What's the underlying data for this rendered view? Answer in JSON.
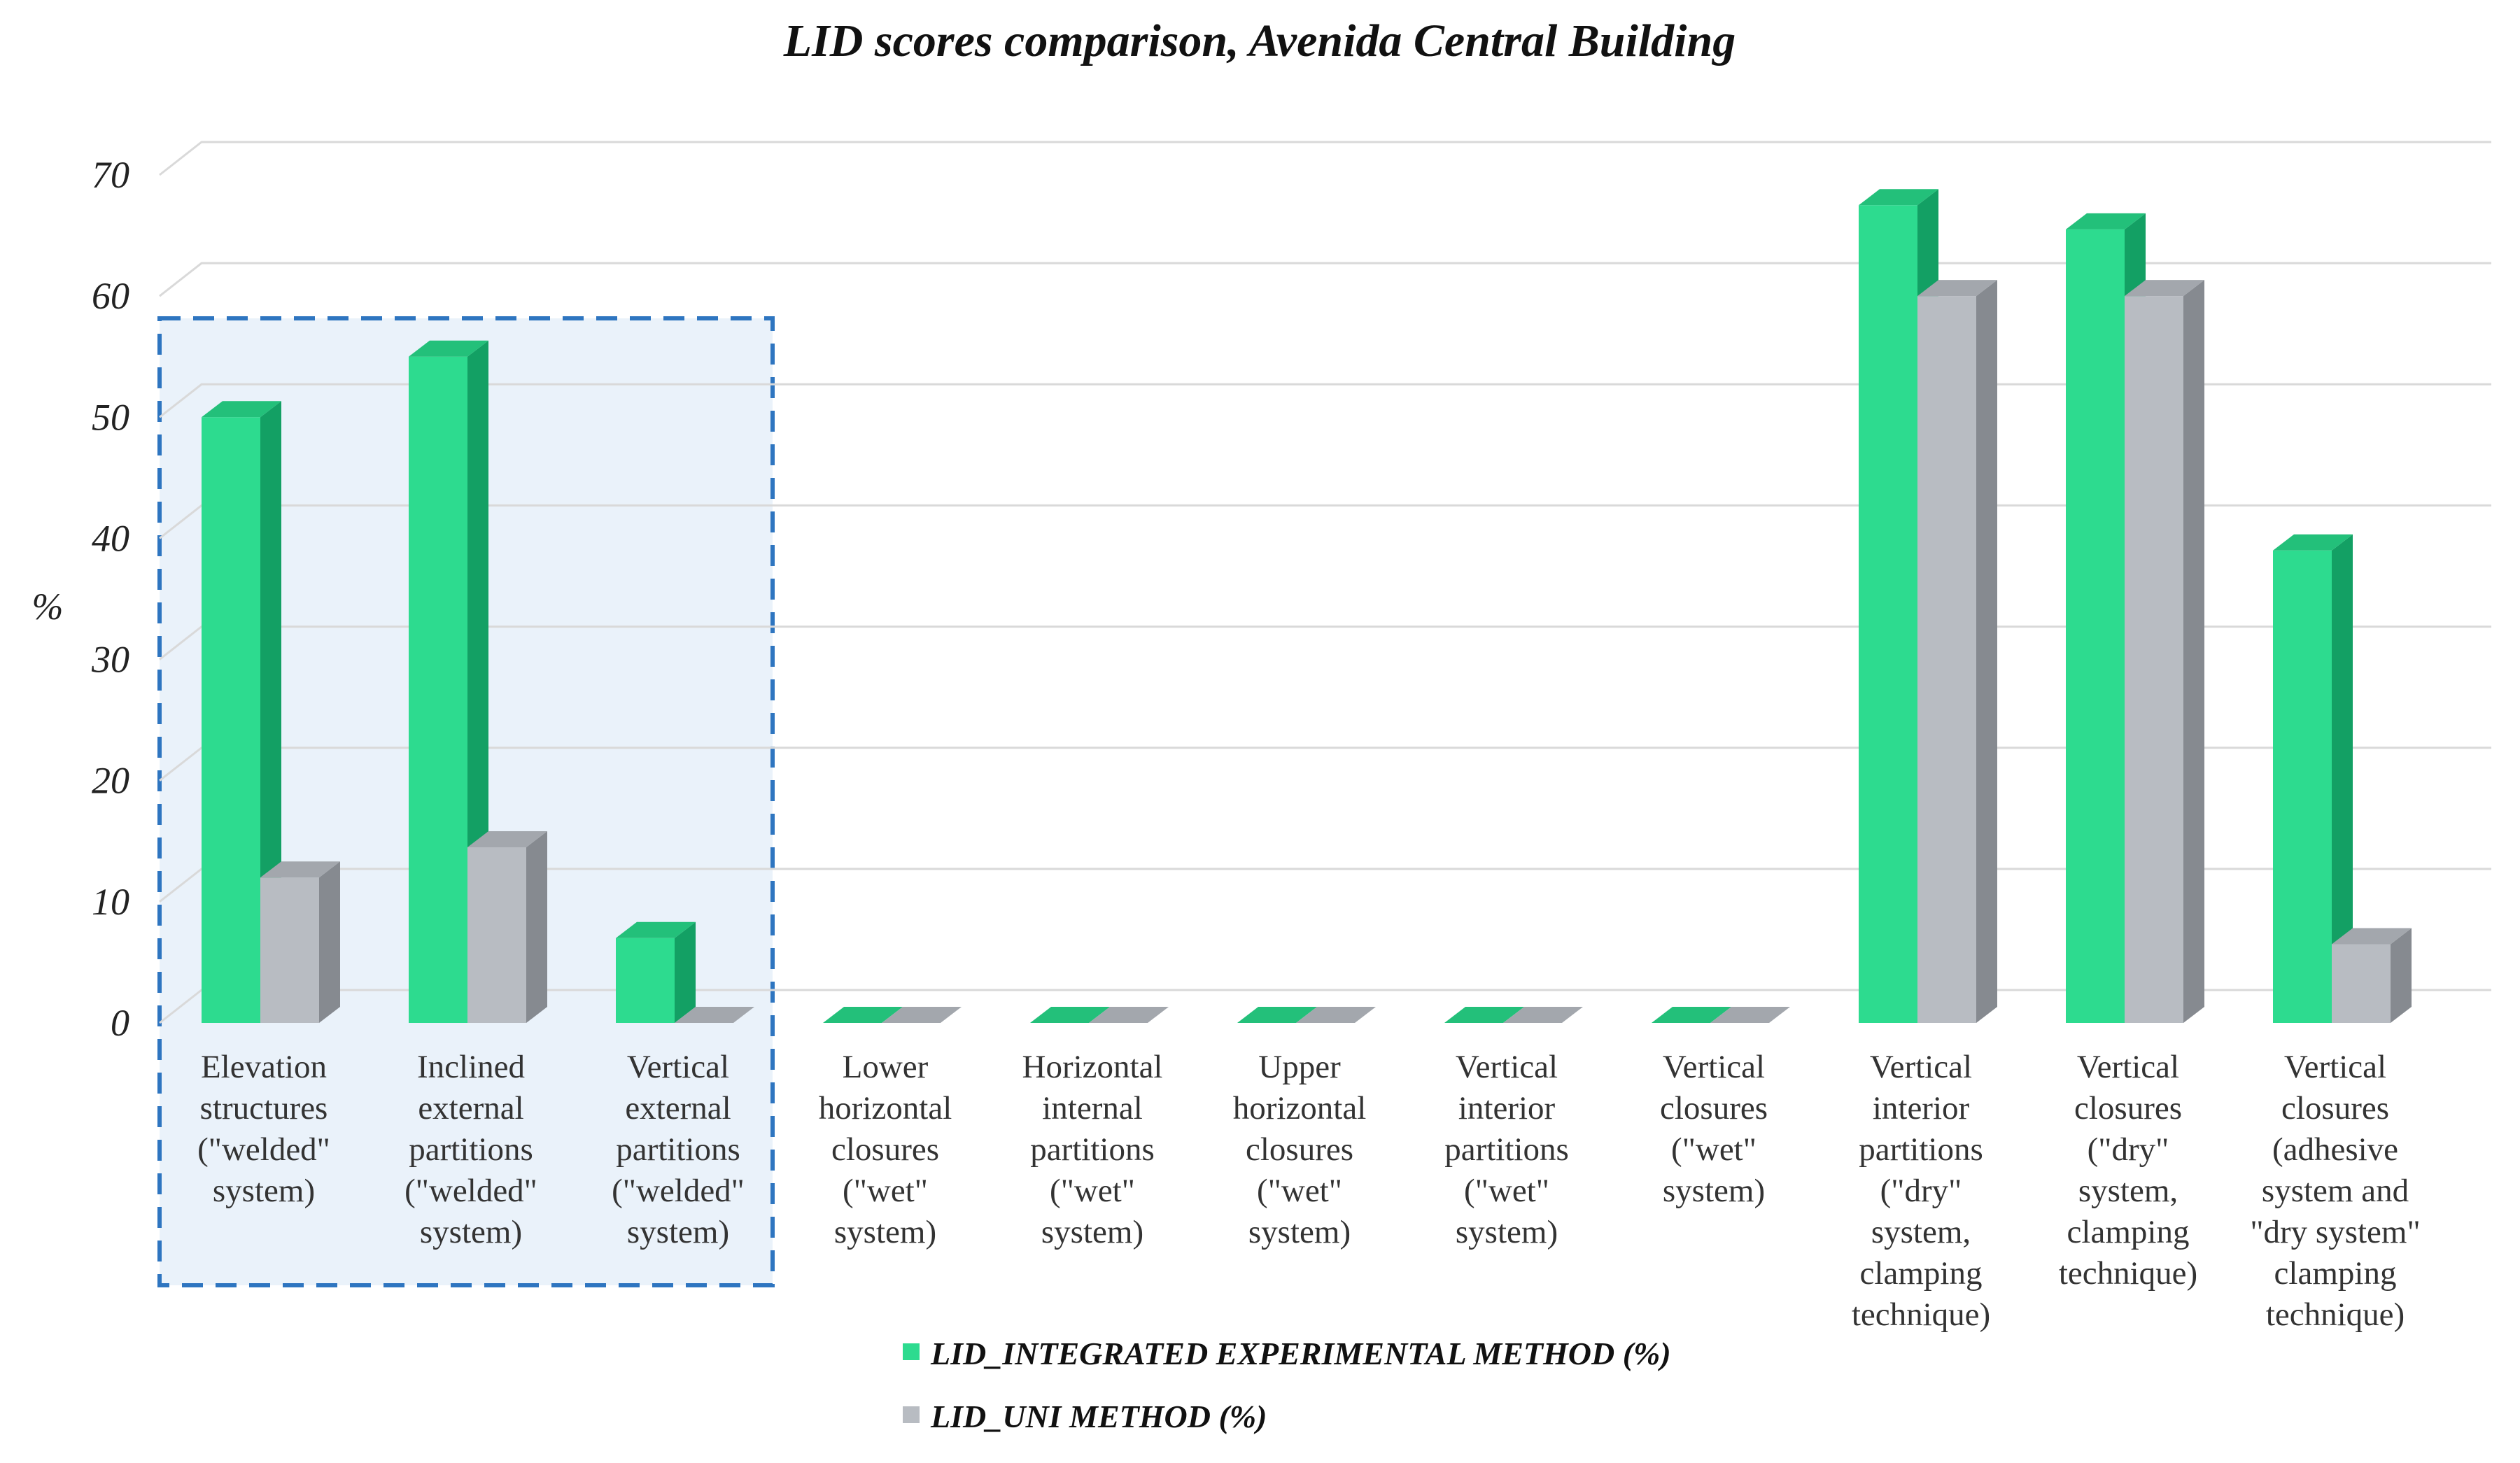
{
  "colors": {
    "integrated_front": "#2ddb8f",
    "integrated_side": "#13a064",
    "integrated_top": "#23c07a",
    "uni_front": "#b8bcc2",
    "uni_side": "#868a90",
    "uni_top": "#a3a7ad",
    "highlight_fill": "#eaf2fa",
    "highlight_border": "#2e75c0",
    "grid": "#d9d9d9"
  },
  "chart_data": {
    "type": "bar",
    "title": "LID scores comparison, Avenida Central Building",
    "xlabel": "",
    "ylabel": "%",
    "ylim": [
      0,
      70
    ],
    "yticks": [
      "0",
      "10",
      "20",
      "30",
      "40",
      "50",
      "60",
      "70"
    ],
    "categories": [
      [
        "Elevation",
        "structures",
        "(\"welded\"",
        "system)"
      ],
      [
        "Inclined",
        "external",
        "partitions",
        "(\"welded\"",
        "system)"
      ],
      [
        "Vertical",
        "external",
        "partitions",
        "(\"welded\"",
        "system)"
      ],
      [
        "Lower",
        "horizontal",
        "closures",
        "(\"wet\"",
        "system)"
      ],
      [
        "Horizontal",
        "internal",
        "partitions",
        "(\"wet\"",
        "system)"
      ],
      [
        "Upper",
        "horizontal",
        "closures",
        "(\"wet\"",
        "system)"
      ],
      [
        "Vertical",
        "interior",
        "partitions",
        "(\"wet\"",
        "system)"
      ],
      [
        "Vertical",
        "closures",
        "(\"wet\"",
        "system)"
      ],
      [
        "Vertical",
        "interior",
        "partitions",
        "(\"dry\"",
        "system,",
        "clamping",
        "technique)"
      ],
      [
        "Vertical",
        "closures",
        "(\"dry\"",
        "system,",
        "clamping",
        "technique)"
      ],
      [
        "Vertical",
        "closures",
        "(adhesive",
        "system and",
        "\"dry system\"",
        "clamping",
        "technique)"
      ]
    ],
    "series": [
      {
        "name": "LID_INTEGRATED EXPERIMENTAL METHOD (%)",
        "values": [
          50,
          55,
          7,
          0,
          0,
          0,
          0,
          0,
          67.5,
          65.5,
          39
        ]
      },
      {
        "name": "LID_UNI METHOD (%)",
        "values": [
          12,
          14.5,
          0,
          0,
          0,
          0,
          0,
          0,
          60,
          60,
          6.5
        ]
      }
    ],
    "highlighted_categories": [
      0,
      1,
      2
    ],
    "legend_position": "bottom-center"
  }
}
